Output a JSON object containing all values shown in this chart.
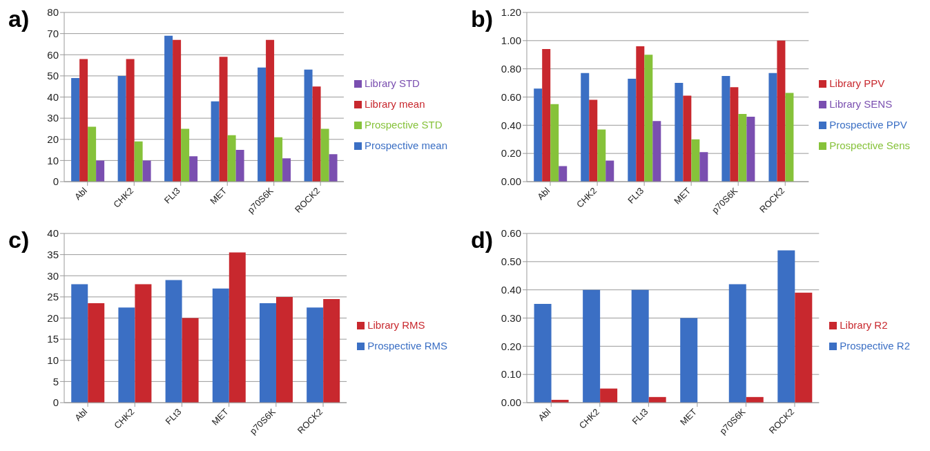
{
  "chart_data": [
    {
      "type": "bar",
      "title": "a)",
      "categories": [
        "Abl",
        "CHK2",
        "FLt3",
        "MET",
        "p70S6K",
        "ROCK2"
      ],
      "series": [
        {
          "name": "Prospective mean",
          "color": "#3b6fc4",
          "values": [
            49,
            50,
            69,
            38,
            54,
            53
          ]
        },
        {
          "name": "Library mean",
          "color": "#c8282e",
          "values": [
            58,
            58,
            67,
            59,
            67,
            45
          ]
        },
        {
          "name": "Prospective STD",
          "color": "#86c23a",
          "values": [
            26,
            19,
            25,
            22,
            21,
            25
          ]
        },
        {
          "name": "Library STD",
          "color": "#7a4fb0",
          "values": [
            10,
            10,
            12,
            15,
            11,
            13
          ]
        }
      ],
      "ylim": [
        0,
        80
      ],
      "yticks": [
        0,
        10,
        20,
        30,
        40,
        50,
        60,
        70,
        80
      ],
      "grid": "y",
      "legend": "right"
    },
    {
      "type": "bar",
      "title": "b)",
      "categories": [
        "Abl",
        "CHK2",
        "FLt3",
        "MET",
        "p70S6K",
        "ROCK2"
      ],
      "series": [
        {
          "name": "Prospective PPV",
          "color": "#3b6fc4",
          "values": [
            0.66,
            0.77,
            0.73,
            0.7,
            0.75,
            0.77
          ]
        },
        {
          "name": "Library PPV",
          "color": "#c8282e",
          "values": [
            0.94,
            0.58,
            0.96,
            0.61,
            0.67,
            1.0
          ]
        },
        {
          "name": "Prospective Sens",
          "color": "#86c23a",
          "values": [
            0.55,
            0.37,
            0.9,
            0.3,
            0.48,
            0.63
          ]
        },
        {
          "name": "Library SENS",
          "color": "#7a4fb0",
          "values": [
            0.11,
            0.15,
            0.43,
            0.21,
            0.46,
            0.0
          ]
        }
      ],
      "ylim": [
        0,
        1.2
      ],
      "yticks": [
        {
          "value": 0,
          "label": "0.00"
        },
        {
          "value": 0.2,
          "label": "0.20"
        },
        {
          "value": 0.4,
          "label": "0.40"
        },
        {
          "value": 0.6,
          "label": "0.60"
        },
        {
          "value": 0.8,
          "label": "0.80"
        },
        {
          "value": 1,
          "label": "1.00"
        },
        {
          "value": 1.2,
          "label": "1.20"
        }
      ],
      "grid": "y",
      "legend": "right"
    },
    {
      "type": "bar",
      "title": "c)",
      "categories": [
        "Abl",
        "CHK2",
        "FLt3",
        "MET",
        "p70S6K",
        "ROCK2"
      ],
      "series": [
        {
          "name": "Prospective RMS",
          "color": "#3b6fc4",
          "values": [
            28,
            22.5,
            29,
            27,
            23.5,
            22.5
          ]
        },
        {
          "name": "Library RMS",
          "color": "#c8282e",
          "values": [
            23.5,
            28,
            20,
            35.5,
            25,
            24.5
          ]
        }
      ],
      "ylim": [
        0,
        40
      ],
      "yticks": [
        0,
        5,
        10,
        15,
        20,
        25,
        30,
        35,
        40
      ],
      "grid": "y",
      "legend": "right"
    },
    {
      "type": "bar",
      "title": "d)",
      "categories": [
        "Abl",
        "CHK2",
        "FLt3",
        "MET",
        "p70S6K",
        "ROCK2"
      ],
      "series": [
        {
          "name": "Prospective R2",
          "color": "#3b6fc4",
          "values": [
            0.35,
            0.4,
            0.4,
            0.3,
            0.42,
            0.54
          ]
        },
        {
          "name": "Library R2",
          "color": "#c8282e",
          "values": [
            0.01,
            0.05,
            0.02,
            0.0,
            0.02,
            0.39
          ]
        }
      ],
      "ylim": [
        0,
        0.6
      ],
      "yticks": [
        {
          "value": 0,
          "label": "0.00"
        },
        {
          "value": 0.1,
          "label": "0.10"
        },
        {
          "value": 0.2,
          "label": "0.20"
        },
        {
          "value": 0.3,
          "label": "0.30"
        },
        {
          "value": 0.4,
          "label": "0.40"
        },
        {
          "value": 0.5,
          "label": "0.50"
        },
        {
          "value": 0.6,
          "label": "0.60"
        }
      ],
      "grid": "y",
      "legend": "right"
    }
  ]
}
